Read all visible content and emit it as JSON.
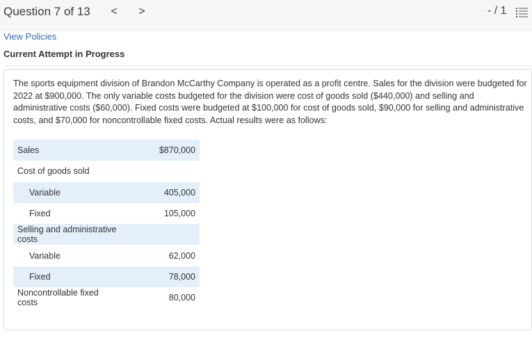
{
  "header": {
    "question_label": "Question 7 of 13",
    "prev_glyph": "<",
    "next_glyph": ">",
    "score": "- / 1",
    "list_icon": "list-icon"
  },
  "links": {
    "view_policies": "View Policies"
  },
  "attempt_status": "Current Attempt in Progress",
  "question": {
    "text": "The sports equipment division of Brandon McCarthy Company is operated as a profit centre. Sales for the division were budgeted for 2022 at $900,000. The only variable costs budgeted for the division were cost of goods sold ($440,000) and selling and administrative costs ($60,000). Fixed costs were budgeted at $100,000 for cost of goods sold, $90,000 for selling and administrative costs, and $70,000 for noncontrollable fixed costs. Actual results were as follows:"
  },
  "table": {
    "rows": [
      {
        "label": "Sales",
        "value": "$870,000"
      },
      {
        "label": "Cost of goods sold",
        "value": ""
      },
      {
        "label": "Variable",
        "value": "405,000"
      },
      {
        "label": "Fixed",
        "value": "105,000"
      },
      {
        "label": "Selling and administrative costs",
        "value": ""
      },
      {
        "label": "Variable",
        "value": "62,000"
      },
      {
        "label": "Fixed",
        "value": "78,000"
      },
      {
        "label": "Noncontrollable fixed costs",
        "value": "80,000"
      }
    ]
  },
  "colors": {
    "link": "#2a6eb8",
    "row_shade": "#e5effa",
    "topbar_bg": "#f6f6f6"
  }
}
